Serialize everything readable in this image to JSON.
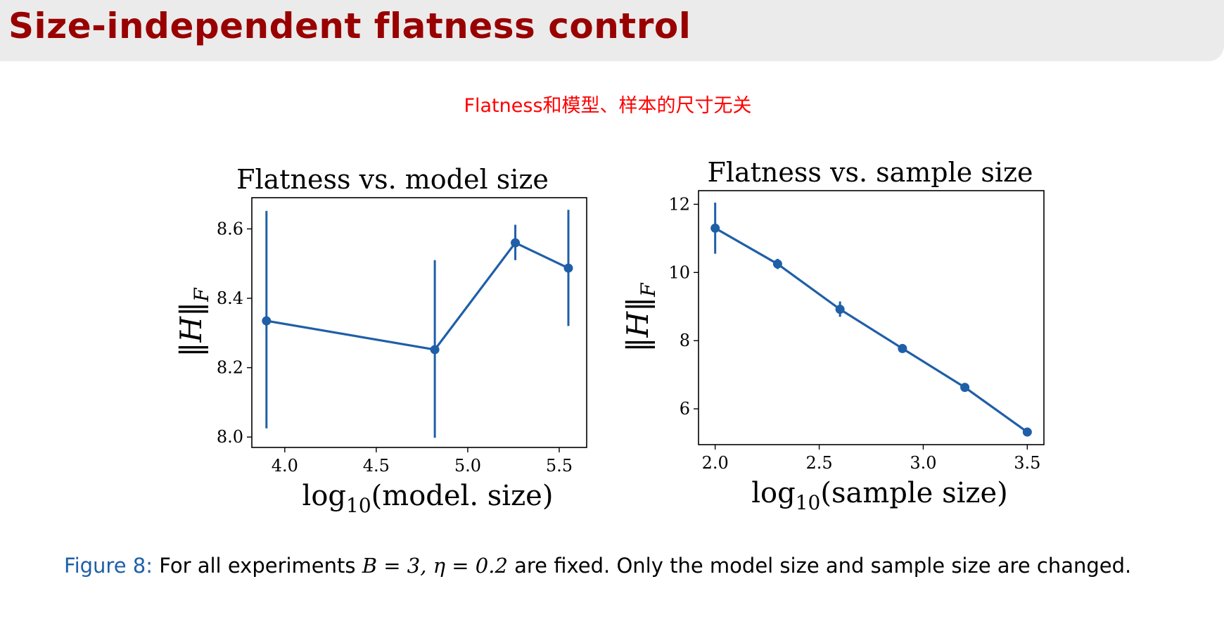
{
  "slide": {
    "title": "Size-independent flatness control",
    "subtitle": "Flatness和模型、样本的尺寸无关"
  },
  "caption": {
    "label": "Figure 8:",
    "text_before_math": "For all experiments",
    "math": "B = 3, η = 0.2",
    "text_after_math": "are fixed. Only the model size and sample size are changed."
  },
  "colors": {
    "series": "#1f5fa8",
    "title": "#990000",
    "subtitle": "#ff0000",
    "caption_label": "#1f5fa8"
  },
  "chart_data": [
    {
      "type": "line",
      "title": "Flatness vs. model size",
      "xlabel_main": "log",
      "xlabel_sub": "10",
      "xlabel_rest": "(model. size)",
      "ylabel_main": "‖H‖",
      "ylabel_sub": "F",
      "xlim": [
        3.82,
        5.65
      ],
      "ylim": [
        7.97,
        8.69
      ],
      "xticks": [
        4.0,
        4.5,
        5.0,
        5.5
      ],
      "xtick_labels": [
        "4.0",
        "4.5",
        "5.0",
        "5.5"
      ],
      "yticks": [
        8.0,
        8.2,
        8.4,
        8.6
      ],
      "ytick_labels": [
        "8.0",
        "8.2",
        "8.4",
        "8.6"
      ],
      "grid": false,
      "series": [
        {
          "x": [
            3.9,
            4.82,
            5.26,
            5.55
          ],
          "y": [
            8.335,
            8.252,
            8.56,
            8.487
          ],
          "yerr_low": [
            8.025,
            7.998,
            8.51,
            8.32
          ],
          "yerr_high": [
            8.652,
            8.51,
            8.612,
            8.655
          ]
        }
      ]
    },
    {
      "type": "line",
      "title": "Flatness vs. sample size",
      "xlabel_main": "log",
      "xlabel_sub": "10",
      "xlabel_rest": "(sample size)",
      "ylabel_main": "‖H‖",
      "ylabel_sub": "F",
      "xlim": [
        1.92,
        3.58
      ],
      "ylim": [
        4.95,
        12.4
      ],
      "xticks": [
        2.0,
        2.5,
        3.0,
        3.5
      ],
      "xtick_labels": [
        "2.0",
        "2.5",
        "3.0",
        "3.5"
      ],
      "yticks": [
        6,
        8,
        10,
        12
      ],
      "ytick_labels": [
        "6",
        "8",
        "10",
        "12"
      ],
      "grid": false,
      "series": [
        {
          "x": [
            2.0,
            2.3,
            2.6,
            2.9,
            3.2,
            3.5
          ],
          "y": [
            11.3,
            10.25,
            8.92,
            7.77,
            6.63,
            5.32
          ],
          "yerr_low": [
            10.55,
            10.1,
            8.7,
            7.7,
            6.58,
            5.28
          ],
          "yerr_high": [
            12.05,
            10.4,
            9.15,
            7.85,
            6.68,
            5.36
          ]
        }
      ]
    }
  ]
}
